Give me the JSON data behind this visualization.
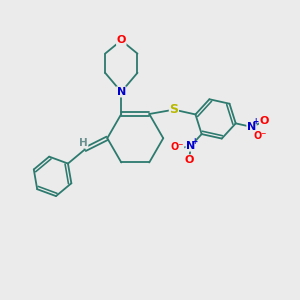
{
  "background_color": "#ebebeb",
  "bond_color": "#2d7a6e",
  "atom_colors": {
    "O": "#ff0000",
    "N": "#0000cc",
    "S": "#b8b800",
    "H": "#6a9090"
  },
  "figsize": [
    3.0,
    3.0
  ],
  "dpi": 100
}
